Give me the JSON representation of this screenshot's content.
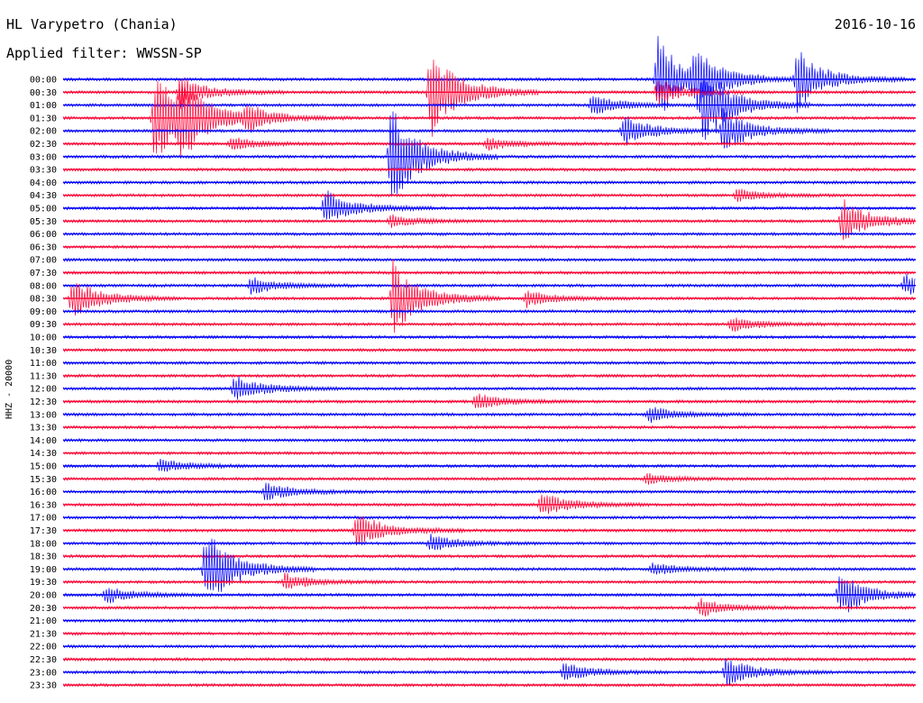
{
  "header": {
    "station": "HL Varypetro (Chania)",
    "filter": "Applied filter: WWSSN-SP",
    "date": "2016-10-16",
    "channel": "HHZ - 20000"
  },
  "colors": {
    "even_row": "#0000ff",
    "odd_row": "#ff0033"
  },
  "chart_data": {
    "type": "line",
    "title": "",
    "xlabel": "",
    "ylabel": "HHZ - 20000",
    "row_labels": [
      "00:00",
      "00:30",
      "01:00",
      "01:30",
      "02:00",
      "02:30",
      "03:00",
      "03:30",
      "04:00",
      "04:30",
      "05:00",
      "05:30",
      "06:00",
      "06:30",
      "07:00",
      "07:30",
      "08:00",
      "08:30",
      "09:00",
      "09:30",
      "10:00",
      "10:30",
      "11:00",
      "11:30",
      "12:00",
      "12:30",
      "13:00",
      "13:30",
      "14:00",
      "14:30",
      "15:00",
      "15:30",
      "16:00",
      "16:30",
      "17:00",
      "17:30",
      "18:00",
      "18:30",
      "19:00",
      "19:30",
      "20:00",
      "20:30",
      "21:00",
      "21:30",
      "22:00",
      "22:30",
      "23:00",
      "23:30"
    ],
    "minutes_per_row": 30,
    "events": [
      {
        "row": "00:00",
        "minute": 25.8,
        "amplitude": 30
      },
      {
        "row": "00:00",
        "minute": 20.9,
        "amplitude": 40
      },
      {
        "row": "00:00",
        "minute": 22.2,
        "amplitude": 25
      },
      {
        "row": "00:30",
        "minute": 12.9,
        "amplitude": 45
      },
      {
        "row": "00:30",
        "minute": 4.1,
        "amplitude": 15
      },
      {
        "row": "00:30",
        "minute": 20.9,
        "amplitude": 12
      },
      {
        "row": "01:00",
        "minute": 18.6,
        "amplitude": 10
      },
      {
        "row": "01:00",
        "minute": 22.5,
        "amplitude": 40
      },
      {
        "row": "01:30",
        "minute": 3.2,
        "amplitude": 45
      },
      {
        "row": "01:30",
        "minute": 4.1,
        "amplitude": 30
      },
      {
        "row": "01:30",
        "minute": 6.4,
        "amplitude": 12
      },
      {
        "row": "02:00",
        "minute": 19.7,
        "amplitude": 15
      },
      {
        "row": "02:00",
        "minute": 23.2,
        "amplitude": 22
      },
      {
        "row": "02:30",
        "minute": 5.9,
        "amplitude": 6
      },
      {
        "row": "02:30",
        "minute": 14.9,
        "amplitude": 6
      },
      {
        "row": "03:00",
        "minute": 11.5,
        "amplitude": 50
      },
      {
        "row": "04:30",
        "minute": 23.7,
        "amplitude": 6
      },
      {
        "row": "05:00",
        "minute": 9.2,
        "amplitude": 18
      },
      {
        "row": "05:30",
        "minute": 11.5,
        "amplitude": 6
      },
      {
        "row": "05:30",
        "minute": 27.4,
        "amplitude": 22
      },
      {
        "row": "08:00",
        "minute": 6.6,
        "amplitude": 8
      },
      {
        "row": "08:00",
        "minute": 29.6,
        "amplitude": 10
      },
      {
        "row": "08:30",
        "minute": 0.3,
        "amplitude": 20
      },
      {
        "row": "08:30",
        "minute": 11.6,
        "amplitude": 35
      },
      {
        "row": "08:30",
        "minute": 16.3,
        "amplitude": 8
      },
      {
        "row": "09:30",
        "minute": 23.5,
        "amplitude": 7
      },
      {
        "row": "12:00",
        "minute": 6.0,
        "amplitude": 14
      },
      {
        "row": "12:30",
        "minute": 14.5,
        "amplitude": 8
      },
      {
        "row": "13:00",
        "minute": 20.6,
        "amplitude": 8
      },
      {
        "row": "15:00",
        "minute": 3.4,
        "amplitude": 7
      },
      {
        "row": "15:30",
        "minute": 20.5,
        "amplitude": 5
      },
      {
        "row": "16:00",
        "minute": 7.1,
        "amplitude": 9
      },
      {
        "row": "16:30",
        "minute": 16.8,
        "amplitude": 12
      },
      {
        "row": "17:30",
        "minute": 10.3,
        "amplitude": 18
      },
      {
        "row": "18:00",
        "minute": 12.9,
        "amplitude": 8
      },
      {
        "row": "19:00",
        "minute": 5.0,
        "amplitude": 40
      },
      {
        "row": "19:00",
        "minute": 20.7,
        "amplitude": 6
      },
      {
        "row": "19:30",
        "minute": 7.8,
        "amplitude": 8
      },
      {
        "row": "20:00",
        "minute": 27.3,
        "amplitude": 22
      },
      {
        "row": "20:00",
        "minute": 1.5,
        "amplitude": 8
      },
      {
        "row": "20:30",
        "minute": 22.4,
        "amplitude": 9
      },
      {
        "row": "23:00",
        "minute": 17.6,
        "amplitude": 9
      },
      {
        "row": "23:00",
        "minute": 23.3,
        "amplitude": 14
      }
    ]
  }
}
